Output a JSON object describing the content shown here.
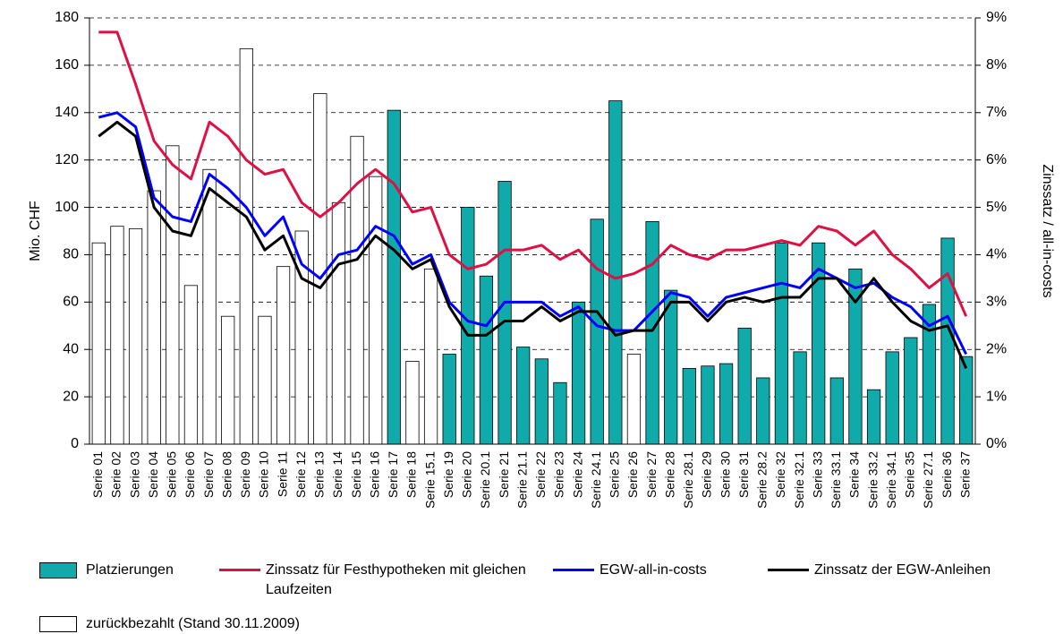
{
  "chart_data": {
    "type": "bar",
    "categories": [
      "Serie 01",
      "Serie 02",
      "Serie 03",
      "Serie 04",
      "Serie 05",
      "Serie 06",
      "Serie 07",
      "Serie 08",
      "Serie 09",
      "Serie 10",
      "Serie 11",
      "Serie 12",
      "Serie 13",
      "Serie 14",
      "Serie 15",
      "Serie 16",
      "Serie 17",
      "Serie 18",
      "Serie 15.1",
      "Serie 19",
      "Serie 20",
      "Serie 20.1",
      "Serie 21",
      "Serie 21.1",
      "Serie 22",
      "Serie 23",
      "Serie 24",
      "Serie 24.1",
      "Serie 25",
      "Serie 26",
      "Serie 27",
      "Serie 28",
      "Serie 28.1",
      "Serie 29",
      "Serie 30",
      "Serie 31",
      "Serie 28.2",
      "Serie 32",
      "Serie 32.1",
      "Serie 33",
      "Serie 33.1",
      "Serie 34",
      "Serie 33.2",
      "Serie 34.1",
      "Serie 35",
      "Serie 27.1",
      "Serie 36",
      "Serie 37"
    ],
    "ylabel": "Mio. CHF",
    "y2label": "Zinssatz / all-in-costs",
    "ylim": [
      0,
      180
    ],
    "yticks": [
      0,
      20,
      40,
      60,
      80,
      100,
      120,
      140,
      160,
      180
    ],
    "y2lim": [
      0,
      9
    ],
    "y2ticks": [
      {
        "value": 0,
        "label": "0%"
      },
      {
        "value": 1,
        "label": "1%"
      },
      {
        "value": 2,
        "label": "2%"
      },
      {
        "value": 3,
        "label": "3%"
      },
      {
        "value": 4,
        "label": "4%"
      },
      {
        "value": 5,
        "label": "5%"
      },
      {
        "value": 6,
        "label": "6%"
      },
      {
        "value": 7,
        "label": "7%"
      },
      {
        "value": 8,
        "label": "8%"
      },
      {
        "value": 9,
        "label": "9%"
      }
    ],
    "grid": true,
    "series": [
      {
        "name": "Platzierungen",
        "type": "bar",
        "color": "#11aaaa",
        "values": [
          null,
          null,
          null,
          null,
          null,
          null,
          null,
          null,
          null,
          null,
          null,
          null,
          null,
          null,
          null,
          null,
          141,
          null,
          null,
          38,
          100,
          71,
          111,
          41,
          36,
          26,
          60,
          95,
          145,
          null,
          94,
          65,
          32,
          33,
          34,
          49,
          28,
          85,
          39,
          85,
          28,
          74,
          23,
          39,
          45,
          59,
          87,
          37
        ]
      },
      {
        "name": "Zinssatz für Festhypotheken mit gleichen Laufzeiten",
        "type": "line",
        "axis": "y2",
        "color": "#dd1144",
        "values": [
          8.7,
          8.7,
          7.6,
          6.4,
          5.9,
          5.6,
          6.8,
          6.5,
          6.0,
          5.7,
          5.8,
          5.1,
          4.8,
          5.1,
          5.5,
          5.8,
          5.5,
          4.9,
          5.0,
          4.0,
          3.7,
          3.8,
          4.1,
          4.1,
          4.2,
          3.9,
          4.1,
          3.7,
          3.5,
          3.6,
          3.8,
          4.2,
          4.0,
          3.9,
          4.1,
          4.1,
          4.2,
          4.3,
          4.2,
          4.6,
          4.5,
          4.2,
          4.5,
          4.0,
          3.7,
          3.3,
          3.6,
          2.7
        ]
      },
      {
        "name": "EGW-all-in-costs",
        "type": "line",
        "axis": "y2",
        "color": "#0000ff",
        "values": [
          6.9,
          7.0,
          6.7,
          5.2,
          4.8,
          4.7,
          5.7,
          5.4,
          5.0,
          4.4,
          4.8,
          3.8,
          3.5,
          4.0,
          4.1,
          4.6,
          4.4,
          3.8,
          4.0,
          3.0,
          2.6,
          2.5,
          3.0,
          3.0,
          3.0,
          2.7,
          2.9,
          2.5,
          2.4,
          2.4,
          2.8,
          3.2,
          3.1,
          2.7,
          3.1,
          3.2,
          3.3,
          3.4,
          3.3,
          3.7,
          3.5,
          3.3,
          3.4,
          3.1,
          2.9,
          2.5,
          2.7,
          1.9
        ]
      },
      {
        "name": "Zinssatz der EGW-Anleihen",
        "type": "line",
        "axis": "y2",
        "color": "#000000",
        "values": [
          6.5,
          6.8,
          6.5,
          5.0,
          4.5,
          4.4,
          5.4,
          5.1,
          4.8,
          4.1,
          4.4,
          3.5,
          3.3,
          3.8,
          3.9,
          4.4,
          4.1,
          3.7,
          3.9,
          2.9,
          2.3,
          2.3,
          2.6,
          2.6,
          2.9,
          2.6,
          2.8,
          2.8,
          2.3,
          2.4,
          2.4,
          3.0,
          3.0,
          2.6,
          3.0,
          3.1,
          3.0,
          3.1,
          3.1,
          3.5,
          3.5,
          3.0,
          3.5,
          3.0,
          2.6,
          2.4,
          2.5,
          1.6
        ]
      },
      {
        "name": "zurückbezahlt (Stand 30.11.2009)",
        "type": "bar",
        "color": "#ffffff",
        "values": [
          85,
          92,
          91,
          107,
          126,
          67,
          116,
          54,
          167,
          54,
          75,
          90,
          148,
          102,
          130,
          113,
          null,
          35,
          74,
          null,
          null,
          null,
          null,
          null,
          null,
          null,
          null,
          null,
          null,
          38,
          null,
          null,
          null,
          null,
          null,
          null,
          null,
          null,
          null,
          null,
          null,
          null,
          null,
          null,
          null,
          null,
          null,
          null
        ]
      }
    ]
  }
}
